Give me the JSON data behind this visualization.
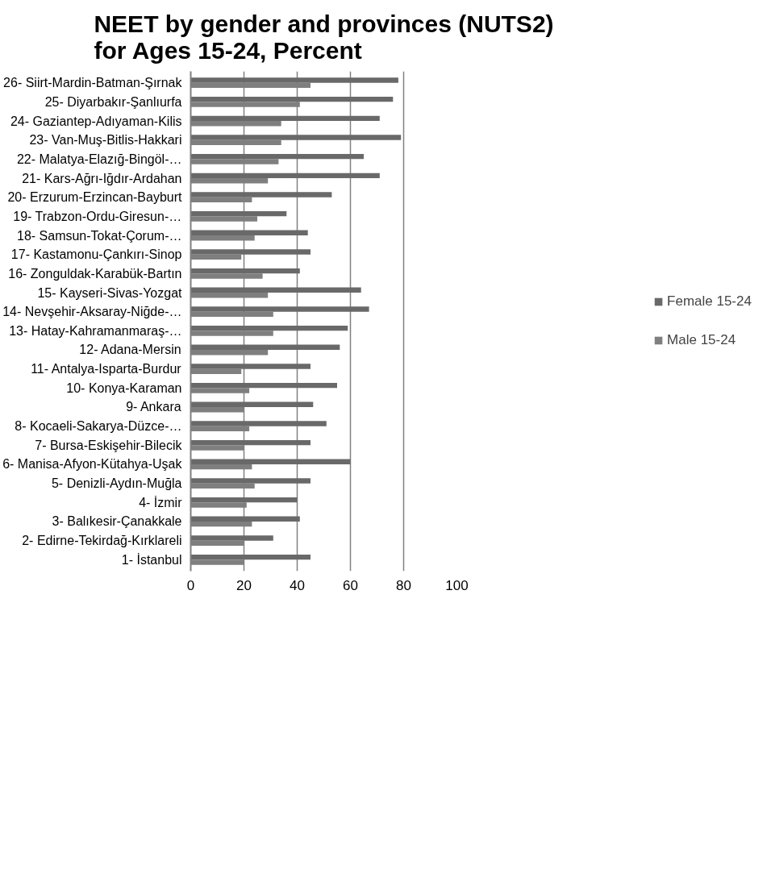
{
  "chart_data": {
    "type": "bar",
    "orientation": "horizontal",
    "title": "NEET by gender and provinces (NUTS2) for Ages 15-24, Percent",
    "categories": [
      "26- Siirt-Mardin-Batman-Şırnak",
      "25- Diyarbakır-Şanlıurfa",
      "24- Gaziantep-Adıyaman-Kilis",
      "23- Van-Muş-Bitlis-Hakkari",
      "22- Malatya-Elazığ-Bingöl-…",
      "21- Kars-Ağrı-Iğdır-Ardahan",
      "20- Erzurum-Erzincan-Bayburt",
      "19- Trabzon-Ordu-Giresun-…",
      "18- Samsun-Tokat-Çorum-…",
      "17- Kastamonu-Çankırı-Sinop",
      "16- Zonguldak-Karabük-Bartın",
      "15- Kayseri-Sivas-Yozgat",
      "14- Nevşehir-Aksaray-Niğde-…",
      "13- Hatay-Kahramanmaraş-…",
      "12- Adana-Mersin",
      "11- Antalya-Isparta-Burdur",
      "10- Konya-Karaman",
      "9- Ankara",
      "8- Kocaeli-Sakarya-Düzce-…",
      "7- Bursa-Eskişehir-Bilecik",
      "6- Manisa-Afyon-Kütahya-Uşak",
      "5- Denizli-Aydın-Muğla",
      "4- İzmir",
      "3- Balıkesir-Çanakkale",
      "2- Edirne-Tekirdağ-Kırklareli",
      "1- İstanbul"
    ],
    "series": [
      {
        "name": "Female 15-24",
        "color": "#696969",
        "values": [
          78,
          76,
          71,
          79,
          65,
          71,
          53,
          36,
          44,
          45,
          41,
          64,
          67,
          59,
          56,
          45,
          55,
          46,
          51,
          45,
          60,
          45,
          40,
          41,
          31,
          45
        ]
      },
      {
        "name": "Male 15-24",
        "color": "#7f7f7f",
        "values": [
          45,
          41,
          34,
          34,
          33,
          29,
          23,
          25,
          24,
          19,
          27,
          29,
          31,
          31,
          29,
          19,
          22,
          20,
          22,
          20,
          23,
          24,
          21,
          23,
          20,
          20
        ]
      }
    ],
    "xlim": [
      0,
      100
    ],
    "xticks": [
      0,
      20,
      40,
      60,
      80,
      100
    ],
    "grid": "x",
    "legend": "right"
  }
}
